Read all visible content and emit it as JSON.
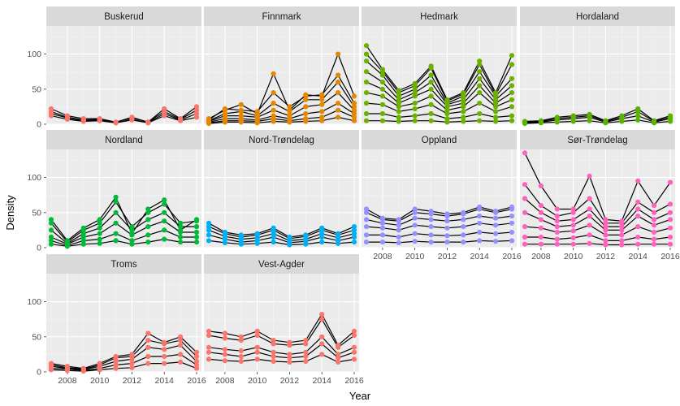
{
  "chart_data": {
    "type": "line",
    "facet_by": "county",
    "xlabel": "Year",
    "ylabel": "Density",
    "xlim": [
      2007,
      2016
    ],
    "ylim": [
      0,
      140
    ],
    "x_ticks": [
      2008,
      2010,
      2012,
      2014,
      2016
    ],
    "y_ticks": [
      0,
      50,
      100
    ],
    "grid": true,
    "x": [
      2007,
      2008,
      2009,
      2010,
      2011,
      2012,
      2013,
      2014,
      2015,
      2016
    ],
    "panels": [
      {
        "name": "Buskerud",
        "color": "#F8766D",
        "series": [
          [
            22,
            12,
            8,
            8,
            3,
            10,
            3,
            22,
            8,
            25
          ],
          [
            18,
            10,
            6,
            7,
            3,
            9,
            3,
            18,
            7,
            20
          ],
          [
            15,
            9,
            5,
            6,
            2,
            7,
            2,
            15,
            6,
            15
          ],
          [
            12,
            7,
            4,
            5,
            2,
            6,
            2,
            12,
            5,
            10
          ]
        ]
      },
      {
        "name": "Finnmark",
        "color": "#E58700",
        "series": [
          [
            8,
            20,
            28,
            15,
            72,
            20,
            42,
            40,
            100,
            40
          ],
          [
            6,
            22,
            20,
            18,
            45,
            25,
            40,
            42,
            70,
            30
          ],
          [
            5,
            15,
            18,
            12,
            30,
            18,
            35,
            35,
            60,
            25
          ],
          [
            4,
            12,
            12,
            10,
            20,
            12,
            25,
            28,
            45,
            20
          ],
          [
            3,
            8,
            8,
            6,
            12,
            8,
            15,
            18,
            30,
            15
          ],
          [
            2,
            5,
            5,
            4,
            8,
            5,
            8,
            10,
            20,
            10
          ],
          [
            1,
            3,
            3,
            2,
            4,
            3,
            4,
            5,
            10,
            5
          ]
        ]
      },
      {
        "name": "Hedmark",
        "color": "#6BB100",
        "series": [
          [
            112,
            78,
            48,
            58,
            83,
            35,
            45,
            90,
            45,
            98
          ],
          [
            100,
            75,
            45,
            55,
            80,
            33,
            43,
            85,
            42,
            85
          ],
          [
            90,
            70,
            40,
            50,
            70,
            30,
            40,
            75,
            40,
            65
          ],
          [
            75,
            60,
            35,
            45,
            60,
            28,
            35,
            65,
            35,
            55
          ],
          [
            60,
            50,
            30,
            40,
            50,
            25,
            30,
            55,
            30,
            45
          ],
          [
            45,
            40,
            25,
            30,
            40,
            20,
            25,
            45,
            25,
            35
          ],
          [
            30,
            28,
            18,
            22,
            28,
            15,
            18,
            30,
            18,
            25
          ],
          [
            15,
            15,
            10,
            12,
            15,
            8,
            10,
            15,
            10,
            12
          ],
          [
            5,
            5,
            4,
            5,
            5,
            3,
            4,
            5,
            4,
            5
          ]
        ]
      },
      {
        "name": "Hordaland",
        "color": "#5BB300",
        "series": [
          [
            4,
            5,
            10,
            12,
            14,
            5,
            12,
            22,
            5,
            12
          ],
          [
            3,
            4,
            8,
            10,
            12,
            4,
            10,
            18,
            4,
            10
          ],
          [
            2,
            3,
            6,
            8,
            10,
            3,
            8,
            12,
            3,
            8
          ],
          [
            1,
            2,
            3,
            4,
            5,
            2,
            4,
            6,
            2,
            4
          ]
        ]
      },
      {
        "name": "Nordland",
        "color": "#00BA38",
        "series": [
          [
            40,
            10,
            28,
            40,
            72,
            20,
            55,
            68,
            25,
            40
          ],
          [
            35,
            8,
            25,
            35,
            65,
            30,
            50,
            62,
            35,
            38
          ],
          [
            25,
            6,
            20,
            28,
            50,
            25,
            40,
            50,
            30,
            30
          ],
          [
            15,
            5,
            15,
            20,
            35,
            18,
            30,
            38,
            22,
            22
          ],
          [
            10,
            3,
            10,
            12,
            20,
            10,
            18,
            25,
            15,
            15
          ],
          [
            5,
            2,
            5,
            6,
            10,
            5,
            8,
            12,
            8,
            8
          ]
        ]
      },
      {
        "name": "Nord-Trøndelag",
        "color": "#00B0F6",
        "series": [
          [
            35,
            22,
            18,
            20,
            28,
            15,
            18,
            28,
            20,
            30
          ],
          [
            30,
            20,
            15,
            18,
            25,
            13,
            16,
            25,
            18,
            25
          ],
          [
            25,
            16,
            12,
            14,
            20,
            10,
            12,
            20,
            14,
            20
          ],
          [
            18,
            12,
            8,
            10,
            15,
            7,
            9,
            15,
            10,
            15
          ],
          [
            10,
            7,
            5,
            6,
            8,
            4,
            5,
            8,
            6,
            8
          ]
        ]
      },
      {
        "name": "Oppland",
        "color": "#9590FF",
        "series": [
          [
            55,
            42,
            40,
            55,
            52,
            48,
            50,
            58,
            52,
            58
          ],
          [
            50,
            40,
            38,
            50,
            48,
            45,
            48,
            55,
            50,
            55
          ],
          [
            40,
            35,
            32,
            42,
            40,
            38,
            40,
            45,
            42,
            45
          ],
          [
            30,
            28,
            25,
            32,
            30,
            28,
            30,
            35,
            32,
            35
          ],
          [
            18,
            18,
            15,
            20,
            18,
            17,
            18,
            22,
            20,
            22
          ],
          [
            8,
            8,
            7,
            9,
            8,
            8,
            8,
            10,
            9,
            10
          ]
        ]
      },
      {
        "name": "Sør-Trøndelag",
        "color": "#FF62BC",
        "series": [
          [
            135,
            88,
            55,
            55,
            102,
            40,
            38,
            95,
            60,
            93
          ],
          [
            90,
            60,
            45,
            50,
            70,
            35,
            35,
            65,
            50,
            62
          ],
          [
            70,
            50,
            38,
            40,
            55,
            30,
            30,
            55,
            40,
            50
          ],
          [
            50,
            40,
            30,
            32,
            45,
            25,
            25,
            45,
            32,
            40
          ],
          [
            30,
            28,
            22,
            24,
            32,
            18,
            18,
            30,
            22,
            28
          ],
          [
            15,
            15,
            12,
            14,
            18,
            10,
            10,
            15,
            12,
            15
          ],
          [
            5,
            5,
            5,
            5,
            6,
            4,
            4,
            5,
            5,
            5
          ]
        ]
      },
      {
        "name": "Troms",
        "color": "#F8766D",
        "series": [
          [
            12,
            8,
            5,
            12,
            22,
            25,
            55,
            42,
            50,
            28
          ],
          [
            10,
            6,
            4,
            10,
            20,
            22,
            45,
            40,
            45,
            22
          ],
          [
            8,
            5,
            3,
            8,
            15,
            18,
            35,
            32,
            38,
            15
          ],
          [
            5,
            4,
            2,
            5,
            10,
            12,
            22,
            22,
            25,
            10
          ],
          [
            3,
            2,
            1,
            3,
            5,
            6,
            12,
            12,
            14,
            5
          ]
        ]
      },
      {
        "name": "Vest-Agder",
        "color": "#F8766D",
        "series": [
          [
            58,
            55,
            50,
            58,
            45,
            42,
            45,
            82,
            38,
            58
          ],
          [
            52,
            48,
            45,
            52,
            40,
            38,
            40,
            75,
            35,
            52
          ],
          [
            35,
            32,
            30,
            35,
            28,
            25,
            28,
            50,
            25,
            35
          ],
          [
            28,
            25,
            22,
            28,
            22,
            20,
            22,
            40,
            20,
            28
          ],
          [
            18,
            16,
            15,
            18,
            15,
            14,
            15,
            25,
            14,
            18
          ]
        ]
      }
    ]
  }
}
